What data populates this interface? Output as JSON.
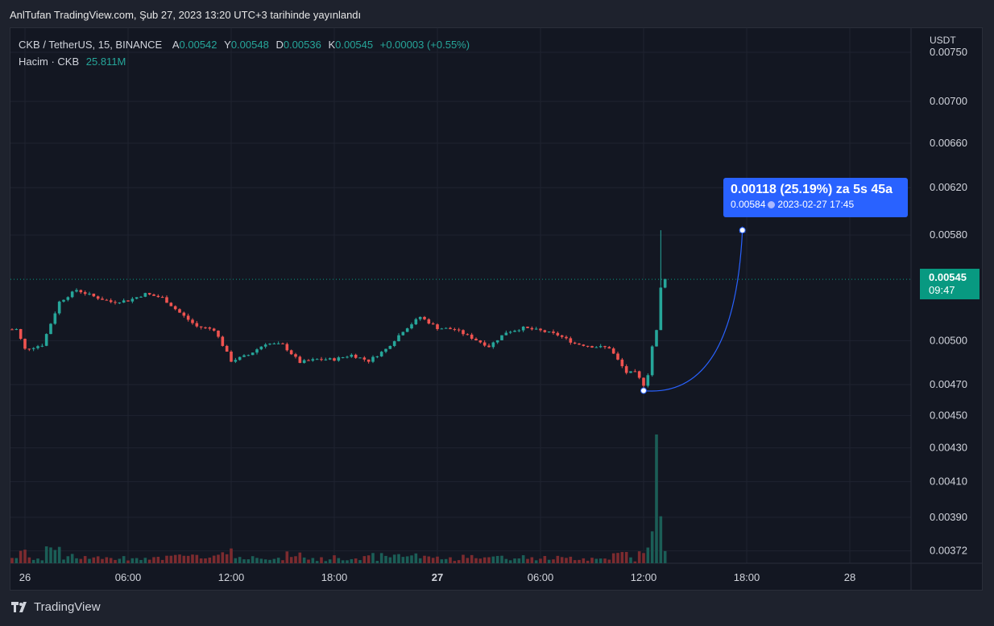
{
  "header": {
    "published": "AnlTufan TradingView.com, Şub 27, 2023 13:20 UTC+3 tarihinde yayınlandı"
  },
  "legend": {
    "symbol": "CKB / TetherUS, 15, BINANCE",
    "open_label": "A",
    "open_value": "0.00542",
    "high_label": "Y",
    "high_value": "0.00548",
    "low_label": "D",
    "low_value": "0.00536",
    "close_label": "K",
    "close_value": "0.00545",
    "change": "+0.00003 (+0.55%)",
    "volume_label": "Hacim · CKB",
    "volume_value": "25.811M"
  },
  "price_scale": {
    "currency": "USDT",
    "ticks": [
      "0.00750",
      "0.00700",
      "0.00660",
      "0.00620",
      "0.00580",
      "0.00500",
      "0.00470",
      "0.00450",
      "0.00430",
      "0.00410",
      "0.00390",
      "0.00372"
    ]
  },
  "time_scale": {
    "ticks": [
      "26",
      "06:00",
      "12:00",
      "18:00",
      "27",
      "06:00",
      "12:00",
      "18:00",
      "28"
    ],
    "bold": [
      false,
      false,
      false,
      false,
      true,
      false,
      false,
      false,
      false
    ]
  },
  "last_price": {
    "price": "0.00545",
    "countdown": "09:47",
    "color": "#089981"
  },
  "measure": {
    "line1": "0.00118 (25.19%) za 5s 45a",
    "price": "0.00584",
    "datetime": "2023-02-27  17:45",
    "color": "#2962ff"
  },
  "footer": {
    "brand": "TradingView"
  },
  "colors": {
    "up": "#26a69a",
    "down": "#ef5350",
    "background": "#131722",
    "grid": "#1f2330"
  },
  "chart_data": {
    "type": "candlestick",
    "symbol": "CKB / TetherUS",
    "interval": "15",
    "x_range": [
      "2023-02-25 22:30",
      "2023-02-28 08:00"
    ],
    "y_scale": "log",
    "ylim": [
      0.0036,
      0.0076
    ],
    "anchors": [
      {
        "t": "2023-02-25 23:30",
        "p": 0.00508
      },
      {
        "t": "2023-02-26 00:00",
        "p": 0.00494
      },
      {
        "t": "2023-02-26 01:00",
        "p": 0.00497
      },
      {
        "t": "2023-02-26 02:00",
        "p": 0.00528
      },
      {
        "t": "2023-02-26 03:00",
        "p": 0.00537
      },
      {
        "t": "2023-02-26 04:00",
        "p": 0.00532
      },
      {
        "t": "2023-02-26 05:00",
        "p": 0.00528
      },
      {
        "t": "2023-02-26 06:00",
        "p": 0.00529
      },
      {
        "t": "2023-02-26 07:00",
        "p": 0.00534
      },
      {
        "t": "2023-02-26 08:00",
        "p": 0.00531
      },
      {
        "t": "2023-02-26 09:00",
        "p": 0.0052
      },
      {
        "t": "2023-02-26 10:00",
        "p": 0.0051
      },
      {
        "t": "2023-02-26 11:00",
        "p": 0.00508
      },
      {
        "t": "2023-02-26 12:00",
        "p": 0.00486
      },
      {
        "t": "2023-02-26 13:00",
        "p": 0.0049
      },
      {
        "t": "2023-02-26 14:00",
        "p": 0.00498
      },
      {
        "t": "2023-02-26 15:00",
        "p": 0.00497
      },
      {
        "t": "2023-02-26 16:00",
        "p": 0.00485
      },
      {
        "t": "2023-02-26 17:00",
        "p": 0.00487
      },
      {
        "t": "2023-02-26 18:00",
        "p": 0.00487
      },
      {
        "t": "2023-02-26 19:00",
        "p": 0.0049
      },
      {
        "t": "2023-02-26 20:00",
        "p": 0.00486
      },
      {
        "t": "2023-02-26 21:00",
        "p": 0.00494
      },
      {
        "t": "2023-02-26 22:00",
        "p": 0.00507
      },
      {
        "t": "2023-02-26 23:00",
        "p": 0.00517
      },
      {
        "t": "2023-02-27 00:00",
        "p": 0.00509
      },
      {
        "t": "2023-02-27 01:00",
        "p": 0.00508
      },
      {
        "t": "2023-02-27 02:00",
        "p": 0.00502
      },
      {
        "t": "2023-02-27 03:00",
        "p": 0.00496
      },
      {
        "t": "2023-02-27 04:00",
        "p": 0.00506
      },
      {
        "t": "2023-02-27 05:00",
        "p": 0.00509
      },
      {
        "t": "2023-02-27 06:00",
        "p": 0.00507
      },
      {
        "t": "2023-02-27 07:00",
        "p": 0.00504
      },
      {
        "t": "2023-02-27 08:00",
        "p": 0.00498
      },
      {
        "t": "2023-02-27 09:00",
        "p": 0.00496
      },
      {
        "t": "2023-02-27 10:00",
        "p": 0.00495
      },
      {
        "t": "2023-02-27 11:00",
        "p": 0.00478
      },
      {
        "t": "2023-02-27 11:30",
        "p": 0.00478
      },
      {
        "t": "2023-02-27 12:00",
        "p": 0.0047
      },
      {
        "t": "2023-02-27 12:15",
        "p": 0.00477
      },
      {
        "t": "2023-02-27 12:30",
        "p": 0.00496
      },
      {
        "t": "2023-02-27 12:45",
        "p": 0.00507
      },
      {
        "t": "2023-02-27 13:00",
        "p": 0.00538
      },
      {
        "t": "2023-02-27 13:15",
        "p": 0.00545
      }
    ],
    "volume_spike": {
      "t": "2023-02-27 12:45",
      "note": "largest volume bar"
    },
    "measure": {
      "from": {
        "t": "2023-02-27 12:00",
        "p": 0.00466
      },
      "to": {
        "t": "2023-02-27 17:45",
        "p": 0.00584
      }
    }
  }
}
